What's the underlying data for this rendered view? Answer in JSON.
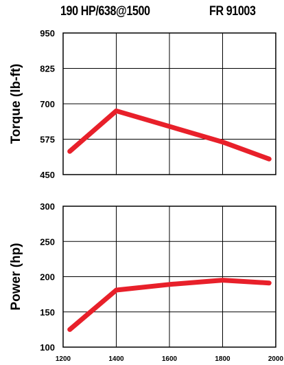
{
  "header": {
    "rating": "190 HP/638@1500",
    "model": "FR 91003"
  },
  "colors": {
    "line": "#e8202a",
    "grid": "#000000"
  },
  "chart_data": [
    {
      "type": "line",
      "id": "torque",
      "ylabel": "Torque (lb-ft)",
      "xlim": [
        1200,
        2000
      ],
      "ylim": [
        450,
        950
      ],
      "yticks": [
        "950",
        "825",
        "700",
        "575",
        "450"
      ],
      "xgrid": [
        1400,
        1600,
        1800
      ],
      "grid": true,
      "series": [
        {
          "x": [
            1225,
            1400,
            1800,
            1975
          ],
          "y": [
            532,
            675,
            565,
            505
          ]
        }
      ]
    },
    {
      "type": "line",
      "id": "power",
      "ylabel": "Power (hp)",
      "xlim": [
        1200,
        2000
      ],
      "ylim": [
        100,
        300
      ],
      "yticks": [
        "300",
        "250",
        "200",
        "150",
        "100"
      ],
      "xgrid": [
        1400,
        1600,
        1800
      ],
      "xticks": [
        "1200",
        "1400",
        "1600",
        "1800",
        "2000"
      ],
      "grid": true,
      "series": [
        {
          "x": [
            1225,
            1400,
            1600,
            1800,
            1975
          ],
          "y": [
            125,
            181,
            189,
            195,
            191
          ]
        }
      ]
    }
  ]
}
